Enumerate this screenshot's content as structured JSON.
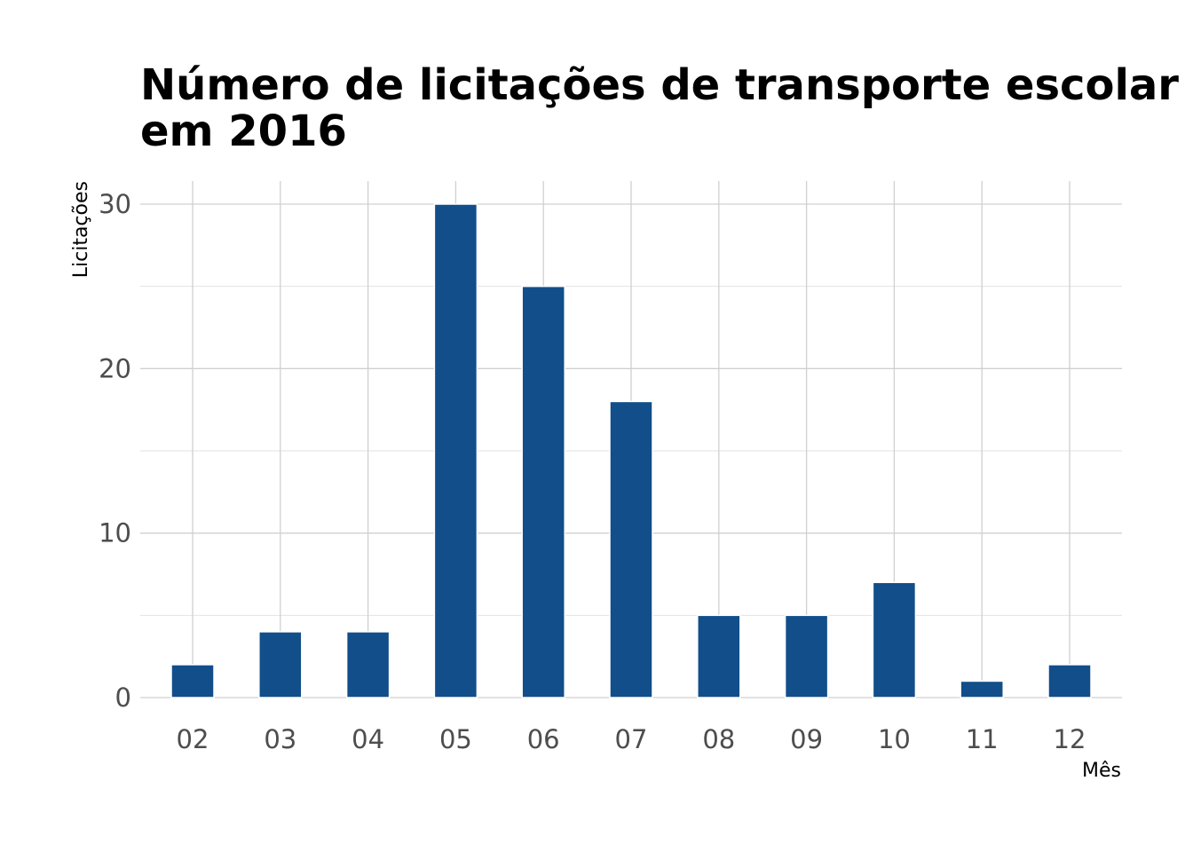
{
  "chart_data": {
    "type": "bar",
    "title_line1": "Número de licitações de transporte escolar",
    "title_line2": "em 2016",
    "xlabel": "Mês",
    "ylabel": "Licitações",
    "categories": [
      "02",
      "03",
      "04",
      "05",
      "06",
      "07",
      "08",
      "09",
      "10",
      "11",
      "12"
    ],
    "values": [
      2,
      4,
      4,
      30,
      25,
      18,
      5,
      5,
      7,
      1,
      2
    ],
    "yticks": [
      "0",
      "10",
      "20",
      "30"
    ],
    "ylim": [
      0,
      31.5
    ],
    "bar_color": "#114e8a",
    "grid": true,
    "legend": "none"
  }
}
